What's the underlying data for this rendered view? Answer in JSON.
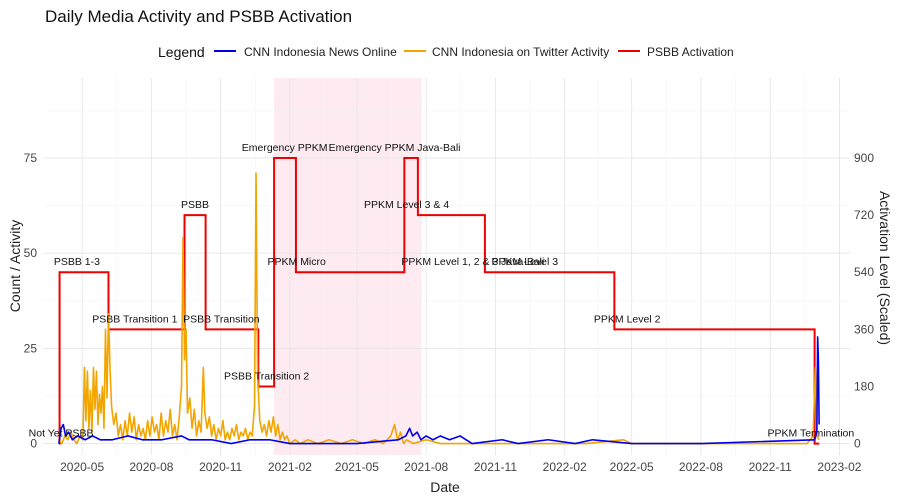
{
  "chart_data": {
    "type": "line",
    "title": "Daily Media Activity and PSBB Activation",
    "xlabel": "Date",
    "ylabel": "Count / Activity",
    "y2label": "Activation Level (Scaled)",
    "legend": {
      "title": "Legend",
      "position": "top",
      "entries": [
        {
          "name": "CNN Indonesia News Online",
          "color": "#0000ee"
        },
        {
          "name": "CNN Indonesia on Twitter Activity",
          "color": "#f2a500"
        },
        {
          "name": "PSBB Activation",
          "color": "#ee0000"
        }
      ]
    },
    "xlim": [
      "2020-03-10",
      "2023-02-15"
    ],
    "ylim": [
      -3,
      96
    ],
    "y2lim": [
      -36,
      1152
    ],
    "x_ticks": [
      "2020-05",
      "2020-08",
      "2020-11",
      "2021-02",
      "2021-05",
      "2021-08",
      "2021-11",
      "2022-02",
      "2022-05",
      "2022-08",
      "2022-11",
      "2023-02"
    ],
    "y_ticks": [
      0,
      25,
      50,
      75
    ],
    "y2_ticks": [
      0,
      180,
      360,
      540,
      720,
      900
    ],
    "shaded_region": {
      "start": "2021-01-11",
      "end": "2021-07-26",
      "color": "#fde8ee"
    },
    "series": [
      {
        "name": "PSBB Activation",
        "axis": "y2",
        "color": "#ee0000",
        "step": [
          {
            "date": "2020-03-31",
            "value": 0
          },
          {
            "date": "2020-04-01",
            "value": 540
          },
          {
            "date": "2020-06-05",
            "value": 360
          },
          {
            "date": "2020-09-14",
            "value": 720
          },
          {
            "date": "2020-10-12",
            "value": 360
          },
          {
            "date": "2020-12-21",
            "value": 180
          },
          {
            "date": "2021-01-11",
            "value": 900
          },
          {
            "date": "2021-02-09",
            "value": 540
          },
          {
            "date": "2021-07-03",
            "value": 900
          },
          {
            "date": "2021-07-21",
            "value": 720
          },
          {
            "date": "2021-10-18",
            "value": 540
          },
          {
            "date": "2022-04-08",
            "value": 360
          },
          {
            "date": "2022-12-30",
            "value": 0
          },
          {
            "date": "2023-01-05",
            "value": 0
          }
        ]
      },
      {
        "name": "CNN Indonesia on Twitter Activity",
        "axis": "y",
        "color": "#f2a500",
        "points": [
          [
            "2020-03-31",
            1
          ],
          [
            "2020-04-04",
            0
          ],
          [
            "2020-04-08",
            2
          ],
          [
            "2020-04-12",
            1
          ],
          [
            "2020-04-16",
            3
          ],
          [
            "2020-04-20",
            1
          ],
          [
            "2020-04-24",
            0
          ],
          [
            "2020-04-28",
            2
          ],
          [
            "2020-05-02",
            1
          ],
          [
            "2020-05-04",
            20
          ],
          [
            "2020-05-06",
            6
          ],
          [
            "2020-05-08",
            19
          ],
          [
            "2020-05-10",
            4
          ],
          [
            "2020-05-12",
            14
          ],
          [
            "2020-05-14",
            3
          ],
          [
            "2020-05-16",
            20
          ],
          [
            "2020-05-18",
            9
          ],
          [
            "2020-05-20",
            19
          ],
          [
            "2020-05-22",
            5
          ],
          [
            "2020-05-24",
            13
          ],
          [
            "2020-05-26",
            8
          ],
          [
            "2020-05-28",
            15
          ],
          [
            "2020-05-30",
            4
          ],
          [
            "2020-06-01",
            30
          ],
          [
            "2020-06-03",
            12
          ],
          [
            "2020-06-05",
            34
          ],
          [
            "2020-06-07",
            20
          ],
          [
            "2020-06-09",
            10
          ],
          [
            "2020-06-12",
            5
          ],
          [
            "2020-06-15",
            8
          ],
          [
            "2020-06-18",
            2
          ],
          [
            "2020-06-21",
            5
          ],
          [
            "2020-06-24",
            1
          ],
          [
            "2020-06-27",
            6
          ],
          [
            "2020-06-30",
            2
          ],
          [
            "2020-07-03",
            8
          ],
          [
            "2020-07-06",
            3
          ],
          [
            "2020-07-09",
            7
          ],
          [
            "2020-07-12",
            1
          ],
          [
            "2020-07-15",
            5
          ],
          [
            "2020-07-18",
            2
          ],
          [
            "2020-07-21",
            4
          ],
          [
            "2020-07-24",
            1
          ],
          [
            "2020-07-27",
            6
          ],
          [
            "2020-07-30",
            2
          ],
          [
            "2020-08-02",
            7
          ],
          [
            "2020-08-05",
            3
          ],
          [
            "2020-08-08",
            5
          ],
          [
            "2020-08-11",
            1
          ],
          [
            "2020-08-14",
            8
          ],
          [
            "2020-08-17",
            2
          ],
          [
            "2020-08-20",
            6
          ],
          [
            "2020-08-23",
            3
          ],
          [
            "2020-08-26",
            9
          ],
          [
            "2020-08-29",
            2
          ],
          [
            "2020-09-01",
            5
          ],
          [
            "2020-09-04",
            1
          ],
          [
            "2020-09-07",
            7
          ],
          [
            "2020-09-10",
            15
          ],
          [
            "2020-09-12",
            54
          ],
          [
            "2020-09-14",
            22
          ],
          [
            "2020-09-16",
            30
          ],
          [
            "2020-09-18",
            8
          ],
          [
            "2020-09-21",
            12
          ],
          [
            "2020-09-24",
            4
          ],
          [
            "2020-09-27",
            9
          ],
          [
            "2020-09-30",
            2
          ],
          [
            "2020-10-03",
            6
          ],
          [
            "2020-10-06",
            3
          ],
          [
            "2020-10-09",
            20
          ],
          [
            "2020-10-11",
            8
          ],
          [
            "2020-10-14",
            4
          ],
          [
            "2020-10-17",
            7
          ],
          [
            "2020-10-20",
            2
          ],
          [
            "2020-10-23",
            5
          ],
          [
            "2020-10-26",
            1
          ],
          [
            "2020-10-29",
            4
          ],
          [
            "2020-11-01",
            2
          ],
          [
            "2020-11-04",
            6
          ],
          [
            "2020-11-07",
            1
          ],
          [
            "2020-11-10",
            3
          ],
          [
            "2020-11-13",
            1
          ],
          [
            "2020-11-16",
            4
          ],
          [
            "2020-11-19",
            2
          ],
          [
            "2020-11-22",
            5
          ],
          [
            "2020-11-25",
            1
          ],
          [
            "2020-11-28",
            3
          ],
          [
            "2020-12-01",
            2
          ],
          [
            "2020-12-04",
            4
          ],
          [
            "2020-12-07",
            1
          ],
          [
            "2020-12-10",
            3
          ],
          [
            "2020-12-13",
            2
          ],
          [
            "2020-12-16",
            10
          ],
          [
            "2020-12-18",
            71
          ],
          [
            "2020-12-20",
            18
          ],
          [
            "2020-12-23",
            6
          ],
          [
            "2020-12-26",
            3
          ],
          [
            "2020-12-29",
            5
          ],
          [
            "2021-01-01",
            2
          ],
          [
            "2021-01-04",
            6
          ],
          [
            "2021-01-07",
            3
          ],
          [
            "2021-01-10",
            7
          ],
          [
            "2021-01-13",
            2
          ],
          [
            "2021-01-16",
            5
          ],
          [
            "2021-01-19",
            1
          ],
          [
            "2021-01-22",
            3
          ],
          [
            "2021-01-25",
            1
          ],
          [
            "2021-01-28",
            2
          ],
          [
            "2021-02-01",
            0
          ],
          [
            "2021-02-08",
            1
          ],
          [
            "2021-02-15",
            0
          ],
          [
            "2021-02-25",
            1
          ],
          [
            "2021-03-10",
            0
          ],
          [
            "2021-03-25",
            1
          ],
          [
            "2021-04-10",
            0
          ],
          [
            "2021-04-25",
            1
          ],
          [
            "2021-05-10",
            0
          ],
          [
            "2021-05-25",
            1
          ],
          [
            "2021-06-05",
            0
          ],
          [
            "2021-06-15",
            2
          ],
          [
            "2021-06-20",
            5
          ],
          [
            "2021-06-24",
            1
          ],
          [
            "2021-06-28",
            3
          ],
          [
            "2021-07-02",
            0
          ],
          [
            "2021-07-06",
            1
          ],
          [
            "2021-07-15",
            0
          ],
          [
            "2021-08-01",
            1
          ],
          [
            "2021-08-20",
            0
          ],
          [
            "2021-09-15",
            0
          ],
          [
            "2021-11-01",
            0
          ],
          [
            "2022-01-01",
            0
          ],
          [
            "2022-03-01",
            0
          ],
          [
            "2022-04-20",
            1
          ],
          [
            "2022-05-01",
            0
          ],
          [
            "2022-08-01",
            0
          ],
          [
            "2022-12-20",
            0
          ],
          [
            "2022-12-28",
            2
          ],
          [
            "2022-12-31",
            20
          ],
          [
            "2023-01-02",
            2
          ],
          [
            "2023-01-05",
            1
          ]
        ]
      },
      {
        "name": "CNN Indonesia News Online",
        "axis": "y",
        "color": "#0000ee",
        "points": [
          [
            "2020-03-31",
            0
          ],
          [
            "2020-04-03",
            4
          ],
          [
            "2020-04-06",
            5
          ],
          [
            "2020-04-09",
            2
          ],
          [
            "2020-04-13",
            3
          ],
          [
            "2020-04-18",
            1
          ],
          [
            "2020-04-25",
            2
          ],
          [
            "2020-05-05",
            1
          ],
          [
            "2020-05-15",
            2
          ],
          [
            "2020-05-25",
            1
          ],
          [
            "2020-06-10",
            1
          ],
          [
            "2020-07-01",
            2
          ],
          [
            "2020-07-20",
            1
          ],
          [
            "2020-08-15",
            1
          ],
          [
            "2020-09-10",
            2
          ],
          [
            "2020-09-20",
            1
          ],
          [
            "2020-10-20",
            1
          ],
          [
            "2020-11-15",
            0
          ],
          [
            "2020-12-10",
            1
          ],
          [
            "2021-01-05",
            1
          ],
          [
            "2021-02-01",
            0
          ],
          [
            "2021-03-01",
            0
          ],
          [
            "2021-05-01",
            0
          ],
          [
            "2021-06-25",
            1
          ],
          [
            "2021-07-05",
            2
          ],
          [
            "2021-07-10",
            4
          ],
          [
            "2021-07-14",
            2
          ],
          [
            "2021-07-20",
            3
          ],
          [
            "2021-07-25",
            1
          ],
          [
            "2021-08-01",
            2
          ],
          [
            "2021-08-10",
            1
          ],
          [
            "2021-08-20",
            2
          ],
          [
            "2021-09-01",
            1
          ],
          [
            "2021-09-15",
            2
          ],
          [
            "2021-10-01",
            0
          ],
          [
            "2021-11-10",
            1
          ],
          [
            "2021-12-01",
            0
          ],
          [
            "2022-01-10",
            1
          ],
          [
            "2022-02-15",
            0
          ],
          [
            "2022-03-10",
            1
          ],
          [
            "2022-05-01",
            0
          ],
          [
            "2022-08-01",
            0
          ],
          [
            "2022-12-30",
            1
          ],
          [
            "2023-01-02",
            3
          ],
          [
            "2023-01-03",
            28
          ],
          [
            "2023-01-04",
            22
          ],
          [
            "2023-01-05",
            5
          ]
        ]
      }
    ],
    "annotations": [
      {
        "text": "Not Yet PSBB",
        "date": "2020-04-03",
        "level": 0,
        "anchor": "middle"
      },
      {
        "text": "PSBB 1-3",
        "date": "2020-04-24",
        "level": 540,
        "anchor": "middle"
      },
      {
        "text": "PSBB Transition 1",
        "date": "2020-07-10",
        "level": 360,
        "anchor": "middle"
      },
      {
        "text": "PSBB",
        "date": "2020-09-28",
        "level": 720,
        "anchor": "middle"
      },
      {
        "text": "PSBB Transition",
        "date": "2020-11-02",
        "level": 360,
        "anchor": "middle"
      },
      {
        "text": "PSBB Transition 2",
        "date": "2021-01-01",
        "level": 180,
        "anchor": "middle"
      },
      {
        "text": "Emergency PPKM",
        "date": "2021-01-25",
        "level": 900,
        "anchor": "middle"
      },
      {
        "text": "PPKM Micro",
        "date": "2021-02-10",
        "level": 540,
        "anchor": "middle"
      },
      {
        "text": "Emergency PPKM Java-Bali",
        "date": "2021-06-20",
        "level": 900,
        "anchor": "middle"
      },
      {
        "text": "PPKM Level 3 & 4",
        "date": "2021-07-06",
        "level": 720,
        "anchor": "middle"
      },
      {
        "text": "PPKM Level 1, 2 & 3 Java-Bali",
        "date": "2021-10-02",
        "level": 540,
        "anchor": "middle"
      },
      {
        "text": "PPKM Level 3",
        "date": "2021-12-10",
        "level": 540,
        "anchor": "middle"
      },
      {
        "text": "PPKM Level 2",
        "date": "2022-04-25",
        "level": 360,
        "anchor": "middle"
      },
      {
        "text": "PPKM Termination",
        "date": "2022-12-25",
        "level": 0,
        "anchor": "middle"
      }
    ]
  }
}
